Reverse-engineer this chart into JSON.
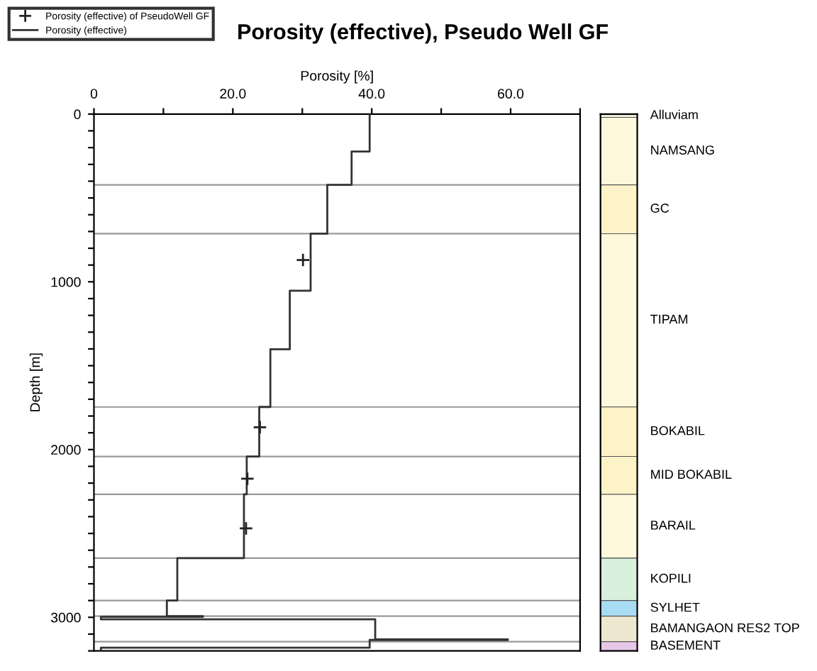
{
  "chart_data": [
    {
      "type": "line",
      "title": "Porosity (effective), Pseudo Well GF",
      "xlabel": "Porosity [%]",
      "ylabel": "Depth [m]",
      "xlim": [
        0,
        70
      ],
      "ylim": [
        3200,
        0
      ],
      "xticks": [
        0,
        {
          "value": 10,
          "label": null
        },
        {
          "value": 20,
          "label": "20.0"
        },
        {
          "value": 30,
          "label": null
        },
        {
          "value": 40,
          "label": "40.0"
        },
        {
          "value": 50,
          "label": null
        },
        {
          "value": 60,
          "label": "60.0"
        },
        {
          "value": 70,
          "label": null
        }
      ],
      "yticks": [
        0,
        {
          "value": 100,
          "label": null
        },
        {
          "value": 200,
          "label": null
        },
        {
          "value": 300,
          "label": null
        },
        {
          "value": 400,
          "label": null
        },
        {
          "value": 500,
          "label": null
        },
        {
          "value": 600,
          "label": null
        },
        {
          "value": 700,
          "label": null
        },
        {
          "value": 800,
          "label": null
        },
        {
          "value": 900,
          "label": null
        },
        1000,
        {
          "value": 1100,
          "label": null
        },
        {
          "value": 1200,
          "label": null
        },
        {
          "value": 1300,
          "label": null
        },
        {
          "value": 1400,
          "label": null
        },
        {
          "value": 1500,
          "label": null
        },
        {
          "value": 1600,
          "label": null
        },
        {
          "value": 1700,
          "label": null
        },
        {
          "value": 1800,
          "label": null
        },
        {
          "value": 1900,
          "label": null
        },
        2000,
        {
          "value": 2100,
          "label": null
        },
        {
          "value": 2200,
          "label": null
        },
        {
          "value": 2300,
          "label": null
        },
        {
          "value": 2400,
          "label": null
        },
        {
          "value": 2500,
          "label": null
        },
        {
          "value": 2600,
          "label": null
        },
        {
          "value": 2700,
          "label": null
        },
        {
          "value": 2800,
          "label": null
        },
        {
          "value": 2900,
          "label": null
        },
        3000,
        {
          "value": 3100,
          "label": null
        },
        {
          "value": 3200,
          "label": null
        }
      ],
      "legend": "top left",
      "grid": false,
      "series": [
        {
          "name": "Porosity (effective) of PseudoWell GF",
          "type": "scatter",
          "marker": "cross",
          "color": "#222222",
          "x": [
            30.1,
            23.9,
            22.1,
            21.9
          ],
          "values": [
            870,
            1867,
            2174,
            2470
          ]
        },
        {
          "name": "Porosity (effective)",
          "type": "line",
          "marker": "none",
          "line_style": "solid",
          "color": "#333333",
          "x": [
            39.7,
            39.7,
            37.1,
            37.1,
            33.6,
            33.6,
            31.2,
            31.2,
            28.2,
            28.2,
            25.4,
            25.4,
            23.8,
            23.8,
            22.0,
            22.0,
            21.6,
            21.6,
            12.0,
            12.0,
            10.5,
            10.5,
            15.7,
            15.7,
            1.0,
            1.0,
            40.5,
            40.5,
            59.6,
            59.6,
            39.7,
            39.7,
            1.0,
            1.0
          ],
          "values": [
            0,
            223,
            223,
            422,
            422,
            713,
            713,
            1053,
            1053,
            1402,
            1402,
            1746,
            1746,
            2041,
            2041,
            2267,
            2267,
            2647,
            2647,
            2900,
            2900,
            2993,
            2993,
            2997,
            2997,
            3012,
            3012,
            3131,
            3131,
            3135,
            3135,
            3181,
            3181,
            3200
          ]
        }
      ],
      "ref_lines": [
        {
          "axis": "y",
          "value": 422,
          "color": "#999999"
        },
        {
          "axis": "y",
          "value": 713,
          "color": "#999999"
        },
        {
          "axis": "y",
          "value": 1746,
          "color": "#999999"
        },
        {
          "axis": "y",
          "value": 2041,
          "color": "#999999"
        },
        {
          "axis": "y",
          "value": 2267,
          "color": "#999999"
        },
        {
          "axis": "y",
          "value": 2647,
          "color": "#999999"
        },
        {
          "axis": "y",
          "value": 2900,
          "color": "#999999"
        },
        {
          "axis": "y",
          "value": 2993,
          "color": "#999999"
        },
        {
          "axis": "y",
          "value": 3145,
          "color": "#999999"
        }
      ]
    },
    {
      "type": "bar",
      "stacked": true,
      "categories": [
        null
      ],
      "ylim": [
        3200,
        0
      ],
      "tick_labels": false,
      "series": [
        {
          "name": "Alluviam",
          "color": "#f2eedc",
          "values": [
            20
          ]
        },
        {
          "name": "NAMSANG",
          "color": "#fdf8dc",
          "values": [
            402
          ]
        },
        {
          "name": "GC",
          "color": "#fcf3c8",
          "values": [
            291
          ]
        },
        {
          "name": "TIPAM",
          "color": "#fdf8dc",
          "values": [
            1033
          ]
        },
        {
          "name": "BOKABIL",
          "color": "#fcf3c8",
          "values": [
            295
          ]
        },
        {
          "name": "MID BOKABIL",
          "color": "#fcf3c8",
          "values": [
            226
          ]
        },
        {
          "name": "BARAIL",
          "color": "#fdf8dc",
          "values": [
            380
          ]
        },
        {
          "name": "KOPILI",
          "color": "#d9f0dc",
          "values": [
            253
          ]
        },
        {
          "name": "SYLHET",
          "color": "#a8dcf2",
          "values": [
            93
          ]
        },
        {
          "name": "BAMANGAON RES2 TOP",
          "color": "#efe8d0",
          "values": [
            152
          ]
        },
        {
          "name": "BASEMENT",
          "color": "#e8c8e8",
          "values": [
            55
          ]
        }
      ]
    }
  ]
}
